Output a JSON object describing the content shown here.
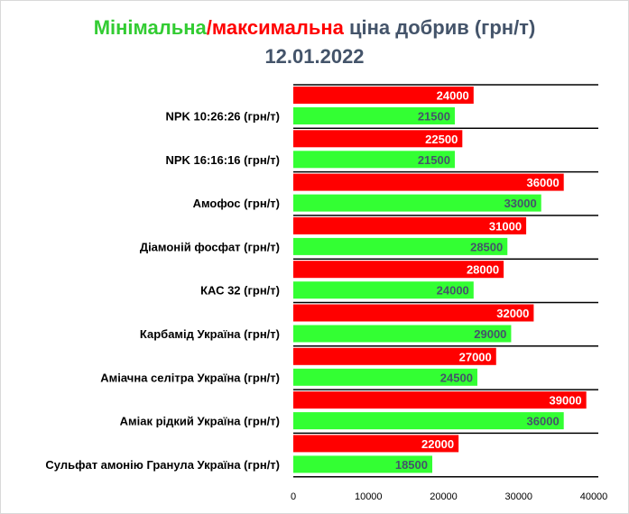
{
  "title": {
    "min_word": "Мінімальна",
    "slash": "/",
    "max_word": "максимальна",
    "rest": " ціна добрив (грн/т)",
    "date": "12.01.2022"
  },
  "colors": {
    "min": "#33ff33",
    "max": "#ff0000",
    "title_min": "#33cc33",
    "title_max": "#ff0000",
    "title_rest": "#44546a",
    "max_label_text": "#ffffff",
    "min_label_text": "#44546a"
  },
  "chart_data": {
    "type": "bar",
    "orientation": "horizontal",
    "title": "Мінімальна/максимальна ціна добрив (грн/т) 12.01.2022",
    "categories": [
      "NPK 10:26:26 (грн/т)",
      "NPK 16:16:16 (грн/т)",
      "Амофос (грн/т)",
      "Діамоній фосфат (грн/т)",
      "КАС 32 (грн/т)",
      "Карбамід Україна (грн/т)",
      "Аміачна селітра Україна (грн/т)",
      "Аміак рідкий Україна (грн/т)",
      "Сульфат амонію Гранула Україна (грн/т)"
    ],
    "series": [
      {
        "values": [
          24000,
          22500,
          36000,
          31000,
          28000,
          32000,
          27000,
          39000,
          22000
        ]
      },
      {
        "values": [
          21500,
          21500,
          33000,
          28500,
          24000,
          29000,
          24500,
          36000,
          18500
        ]
      }
    ],
    "xlim": [
      0,
      40000
    ],
    "xticks": [
      0,
      10000,
      20000,
      30000,
      40000
    ],
    "data_labels": true,
    "grid": "horizontal separators",
    "legend": "none"
  }
}
